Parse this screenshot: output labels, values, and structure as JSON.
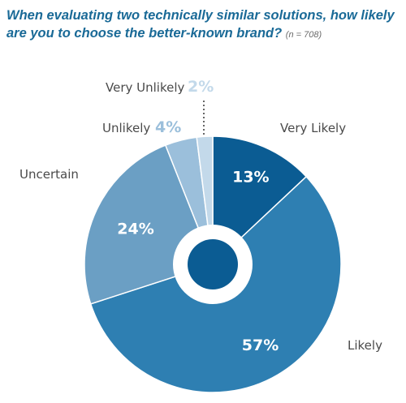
{
  "chart_data": {
    "type": "pie",
    "title": "When evaluating two technically similar solutions, how likely are you to choose the better-known brand?",
    "sample_note": "(n = 708)",
    "slices": [
      {
        "label": "Very Likely",
        "value": 13,
        "display": "13%",
        "color": "#0b5c93"
      },
      {
        "label": "Likely",
        "value": 57,
        "display": "57%",
        "color": "#2e7fb2"
      },
      {
        "label": "Uncertain",
        "value": 24,
        "display": "24%",
        "color": "#6b9fc4"
      },
      {
        "label": "Unlikely",
        "value": 4,
        "display": "4%",
        "color": "#9bbfdb"
      },
      {
        "label": "Very Unlikely",
        "value": 2,
        "display": "2%",
        "color": "#c3d9ea"
      }
    ],
    "center_dot_color": "#0b5c93"
  }
}
